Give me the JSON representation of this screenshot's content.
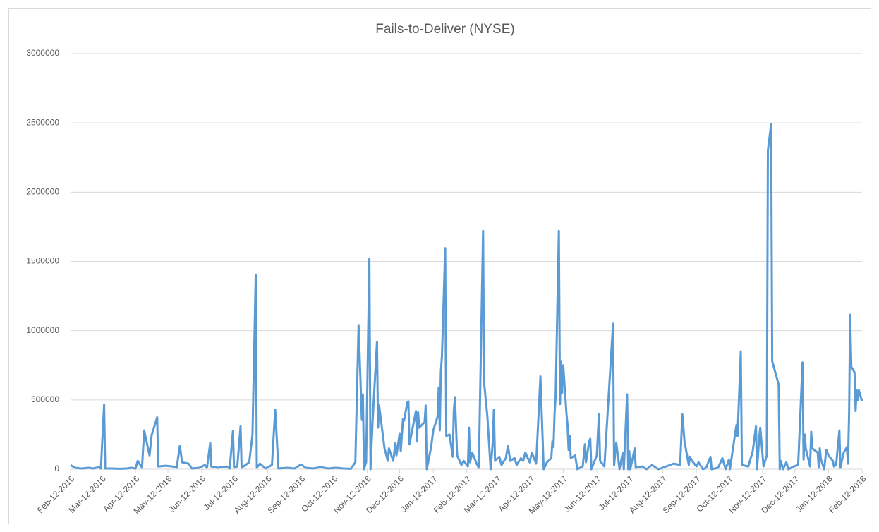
{
  "chart_data": {
    "type": "line",
    "title": "Fails-to-Deliver (NYSE)",
    "color": "#5b9bd5",
    "grid": true,
    "ylim": [
      0,
      3000000
    ],
    "yticks": [
      0,
      500000,
      1000000,
      1500000,
      2000000,
      2500000,
      3000000
    ],
    "xlim": [
      "2016-02-12",
      "2018-02-12"
    ],
    "xticks": [
      {
        "value": "2016-02-12",
        "label": "Feb-12-2016"
      },
      {
        "value": "2016-03-12",
        "label": "Mar-12-2016"
      },
      {
        "value": "2016-04-12",
        "label": "Apr-12-2016"
      },
      {
        "value": "2016-05-12",
        "label": "May-12-2016"
      },
      {
        "value": "2016-06-12",
        "label": "Jun-12-2016"
      },
      {
        "value": "2016-07-12",
        "label": "Jul-12-2016"
      },
      {
        "value": "2016-08-12",
        "label": "Aug-12-2016"
      },
      {
        "value": "2016-09-12",
        "label": "Sep-12-2016"
      },
      {
        "value": "2016-10-12",
        "label": "Oct-12-2016"
      },
      {
        "value": "2016-11-12",
        "label": "Nov-12-2016"
      },
      {
        "value": "2016-12-12",
        "label": "Dec-12-2016"
      },
      {
        "value": "2017-01-12",
        "label": "Jan-12-2017"
      },
      {
        "value": "2017-02-12",
        "label": "Feb-12-2017"
      },
      {
        "value": "2017-03-12",
        "label": "Mar-12-2017"
      },
      {
        "value": "2017-04-12",
        "label": "Apr-12-2017"
      },
      {
        "value": "2017-05-12",
        "label": "May-12-2017"
      },
      {
        "value": "2017-06-12",
        "label": "Jun-12-2017"
      },
      {
        "value": "2017-07-12",
        "label": "Jul-12-2017"
      },
      {
        "value": "2017-08-12",
        "label": "Aug-12-2017"
      },
      {
        "value": "2017-09-12",
        "label": "Sep-12-2017"
      },
      {
        "value": "2017-10-12",
        "label": "Oct-12-2017"
      },
      {
        "value": "2017-11-12",
        "label": "Nov-12-2017"
      },
      {
        "value": "2017-12-12",
        "label": "Dec-12-2017"
      },
      {
        "value": "2018-01-12",
        "label": "Jan-12-2018"
      },
      {
        "value": "2018-02-12",
        "label": "Feb-12-2018"
      }
    ],
    "x": [
      "2016-02-12",
      "2016-02-16",
      "2016-02-22",
      "2016-02-29",
      "2016-03-04",
      "2016-03-09",
      "2016-03-11",
      "2016-03-14",
      "2016-03-15",
      "2016-03-21",
      "2016-03-28",
      "2016-04-04",
      "2016-04-08",
      "2016-04-12",
      "2016-04-14",
      "2016-04-18",
      "2016-04-20",
      "2016-04-25",
      "2016-04-27",
      "2016-05-02",
      "2016-05-03",
      "2016-05-10",
      "2016-05-16",
      "2016-05-20",
      "2016-05-23",
      "2016-05-25",
      "2016-05-31",
      "2016-06-03",
      "2016-06-10",
      "2016-06-15",
      "2016-06-17",
      "2016-06-20",
      "2016-06-21",
      "2016-06-27",
      "2016-07-05",
      "2016-07-08",
      "2016-07-11",
      "2016-07-12",
      "2016-07-15",
      "2016-07-18",
      "2016-07-19",
      "2016-07-26",
      "2016-07-29",
      "2016-08-01",
      "2016-08-02",
      "2016-08-05",
      "2016-08-10",
      "2016-08-16",
      "2016-08-19",
      "2016-08-22",
      "2016-08-30",
      "2016-09-06",
      "2016-09-12",
      "2016-09-16",
      "2016-09-23",
      "2016-09-30",
      "2016-10-07",
      "2016-10-14",
      "2016-10-21",
      "2016-10-28",
      "2016-11-01",
      "2016-11-04",
      "2016-11-07",
      "2016-11-08",
      "2016-11-09",
      "2016-11-11",
      "2016-11-14",
      "2016-11-15",
      "2016-11-17",
      "2016-11-21",
      "2016-11-22",
      "2016-11-23",
      "2016-11-28",
      "2016-12-01",
      "2016-12-02",
      "2016-12-06",
      "2016-12-08",
      "2016-12-09",
      "2016-12-12",
      "2016-12-13",
      "2016-12-15",
      "2016-12-16",
      "2016-12-19",
      "2016-12-20",
      "2016-12-21",
      "2016-12-27",
      "2016-12-28",
      "2016-12-29",
      "2016-12-30",
      "2017-01-04",
      "2017-01-05",
      "2017-01-06",
      "2017-01-10",
      "2017-01-12",
      "2017-01-16",
      "2017-01-17",
      "2017-01-18",
      "2017-01-19",
      "2017-01-20",
      "2017-01-23",
      "2017-01-24",
      "2017-01-27",
      "2017-01-30",
      "2017-01-31",
      "2017-02-01",
      "2017-02-03",
      "2017-02-07",
      "2017-02-09",
      "2017-02-13",
      "2017-02-14",
      "2017-02-15",
      "2017-02-17",
      "2017-02-21",
      "2017-02-23",
      "2017-02-27",
      "2017-02-28",
      "2017-03-03",
      "2017-03-06",
      "2017-03-08",
      "2017-03-09",
      "2017-03-10",
      "2017-03-14",
      "2017-03-16",
      "2017-03-20",
      "2017-03-22",
      "2017-03-24",
      "2017-03-28",
      "2017-03-30",
      "2017-04-03",
      "2017-04-05",
      "2017-04-07",
      "2017-04-11",
      "2017-04-13",
      "2017-04-17",
      "2017-04-21",
      "2017-04-24",
      "2017-04-27",
      "2017-05-01",
      "2017-05-02",
      "2017-05-03",
      "2017-05-04",
      "2017-05-05",
      "2017-05-08",
      "2017-05-09",
      "2017-05-10",
      "2017-05-11",
      "2017-05-12",
      "2017-05-15",
      "2017-05-16",
      "2017-05-17",
      "2017-05-18",
      "2017-05-19",
      "2017-05-23",
      "2017-05-25",
      "2017-05-30",
      "2017-06-01",
      "2017-06-02",
      "2017-06-05",
      "2017-06-06",
      "2017-06-07",
      "2017-06-12",
      "2017-06-14",
      "2017-06-15",
      "2017-06-19",
      "2017-06-27",
      "2017-06-28",
      "2017-06-30",
      "2017-07-03",
      "2017-07-06",
      "2017-07-07",
      "2017-07-10",
      "2017-07-11",
      "2017-07-12",
      "2017-07-13",
      "2017-07-17",
      "2017-07-18",
      "2017-07-24",
      "2017-07-28",
      "2017-08-02",
      "2017-08-08",
      "2017-08-15",
      "2017-08-22",
      "2017-08-28",
      "2017-08-30",
      "2017-09-01",
      "2017-09-05",
      "2017-09-06",
      "2017-09-08",
      "2017-09-12",
      "2017-09-14",
      "2017-09-18",
      "2017-09-21",
      "2017-09-25",
      "2017-09-26",
      "2017-10-02",
      "2017-10-06",
      "2017-10-09",
      "2017-10-12",
      "2017-10-13",
      "2017-10-18",
      "2017-10-19",
      "2017-10-20",
      "2017-10-23",
      "2017-10-24",
      "2017-10-30",
      "2017-11-03",
      "2017-11-06",
      "2017-11-07",
      "2017-11-09",
      "2017-11-10",
      "2017-11-13",
      "2017-11-16",
      "2017-11-17",
      "2017-11-20",
      "2017-11-21",
      "2017-11-27",
      "2017-11-28",
      "2017-11-29",
      "2017-12-01",
      "2017-12-04",
      "2017-12-06",
      "2017-12-11",
      "2017-12-15",
      "2017-12-19",
      "2017-12-20",
      "2017-12-21",
      "2017-12-22",
      "2017-12-26",
      "2017-12-27",
      "2017-12-28",
      "2018-01-02",
      "2018-01-03",
      "2018-01-04",
      "2018-01-05",
      "2018-01-08",
      "2018-01-10",
      "2018-01-12",
      "2018-01-16",
      "2018-01-17",
      "2018-01-19",
      "2018-01-22",
      "2018-01-23",
      "2018-01-26",
      "2018-01-29",
      "2018-01-30",
      "2018-01-31",
      "2018-02-01",
      "2018-02-02",
      "2018-02-05",
      "2018-02-06",
      "2018-02-07",
      "2018-02-08",
      "2018-02-09",
      "2018-02-12"
    ],
    "values": [
      30000,
      10000,
      5000,
      10000,
      5000,
      15000,
      5000,
      465000,
      5000,
      5000,
      3000,
      5000,
      10000,
      5000,
      60000,
      10000,
      280000,
      100000,
      250000,
      375000,
      20000,
      25000,
      20000,
      10000,
      170000,
      50000,
      40000,
      5000,
      10000,
      30000,
      10000,
      190000,
      20000,
      10000,
      20000,
      5000,
      275000,
      10000,
      20000,
      310000,
      10000,
      50000,
      250000,
      1405000,
      10000,
      40000,
      5000,
      30000,
      430000,
      5000,
      10000,
      5000,
      35000,
      10000,
      5000,
      15000,
      5000,
      10000,
      5000,
      3000,
      50000,
      1040000,
      360000,
      540000,
      0,
      50000,
      1520000,
      0,
      350000,
      920000,
      300000,
      460000,
      150000,
      60000,
      150000,
      60000,
      190000,
      100000,
      260000,
      130000,
      360000,
      350000,
      480000,
      490000,
      180000,
      420000,
      200000,
      410000,
      300000,
      340000,
      460000,
      0,
      160000,
      280000,
      380000,
      590000,
      280000,
      700000,
      820000,
      1595000,
      240000,
      250000,
      90000,
      420000,
      520000,
      100000,
      30000,
      60000,
      20000,
      300000,
      50000,
      120000,
      40000,
      10000,
      1720000,
      620000,
      380000,
      0,
      200000,
      430000,
      60000,
      90000,
      30000,
      80000,
      170000,
      60000,
      80000,
      30000,
      80000,
      60000,
      120000,
      50000,
      120000,
      40000,
      670000,
      0,
      50000,
      80000,
      200000,
      160000,
      400000,
      520000,
      1720000,
      470000,
      780000,
      550000,
      750000,
      400000,
      320000,
      140000,
      240000,
      80000,
      100000,
      0,
      20000,
      180000,
      50000,
      200000,
      220000,
      0,
      100000,
      400000,
      60000,
      20000,
      1050000,
      30000,
      190000,
      0,
      120000,
      0,
      540000,
      0,
      130000,
      0,
      150000,
      10000,
      20000,
      0,
      30000,
      0,
      20000,
      40000,
      30000,
      395000,
      200000,
      30000,
      90000,
      60000,
      20000,
      50000,
      0,
      10000,
      90000,
      0,
      10000,
      80000,
      0,
      70000,
      0,
      270000,
      320000,
      240000,
      850000,
      30000,
      20000,
      130000,
      310000,
      0,
      230000,
      300000,
      20000,
      100000,
      2300000,
      2490000,
      780000,
      610000,
      0,
      60000,
      0,
      50000,
      0,
      20000,
      30000,
      770000,
      70000,
      250000,
      150000,
      20000,
      270000,
      150000,
      120000,
      10000,
      150000,
      70000,
      0,
      140000,
      100000,
      60000,
      20000,
      30000,
      280000,
      10000,
      120000,
      160000,
      40000,
      400000,
      1115000,
      740000,
      700000,
      420000,
      570000,
      500000,
      570000,
      490000
    ]
  }
}
